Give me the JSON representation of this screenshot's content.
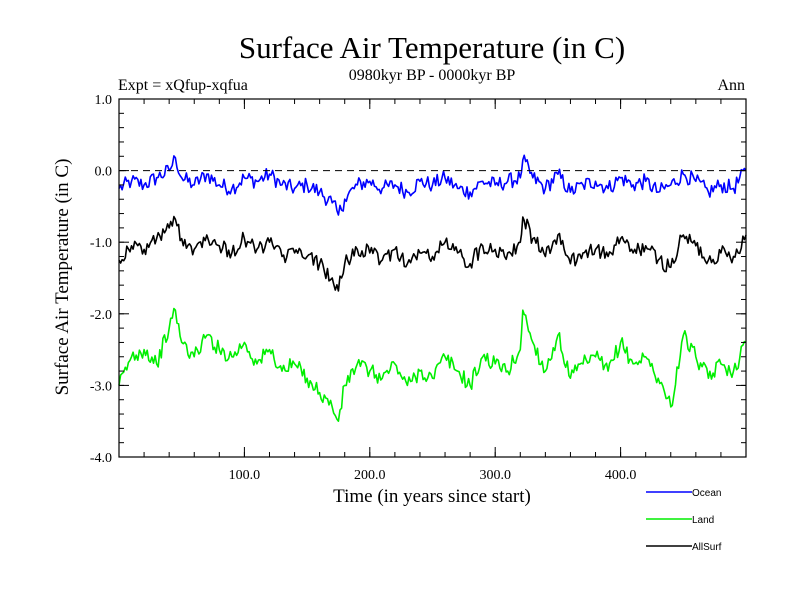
{
  "chart_data": {
    "type": "line",
    "title": "Surface Air Temperature (in C)",
    "subtitle": "0980kyr BP - 0000kyr BP",
    "expt_label": "Expt = xQfup-xqfua",
    "period_label": "Ann",
    "xlabel": "Time (in years since start)",
    "ylabel": "Surface Air Temperature (in C)",
    "xlim": [
      0,
      500
    ],
    "ylim": [
      -4.0,
      1.0
    ],
    "x_ticks": [
      {
        "value": 100,
        "label": "100.0"
      },
      {
        "value": 200,
        "label": "200.0"
      },
      {
        "value": 300,
        "label": "300.0"
      },
      {
        "value": 400,
        "label": "400.0"
      }
    ],
    "y_ticks": [
      {
        "value": 1.0,
        "label": "1.0"
      },
      {
        "value": 0.0,
        "label": "0.0"
      },
      {
        "value": -1.0,
        "label": "-1.0"
      },
      {
        "value": -2.0,
        "label": "-2.0"
      },
      {
        "value": -3.0,
        "label": "-3.0"
      },
      {
        "value": -4.0,
        "label": "-4.0"
      }
    ],
    "reference_line": {
      "y": 0.0,
      "style": "dashed"
    },
    "series": [
      {
        "name": "Ocean",
        "color": "#0000ff",
        "x": [
          0,
          10,
          20,
          30,
          40,
          45,
          50,
          60,
          70,
          80,
          90,
          100,
          110,
          120,
          130,
          140,
          150,
          160,
          170,
          175,
          180,
          190,
          200,
          210,
          220,
          230,
          240,
          250,
          260,
          270,
          280,
          290,
          300,
          310,
          320,
          322,
          330,
          340,
          350,
          360,
          370,
          380,
          390,
          400,
          410,
          420,
          430,
          440,
          450,
          460,
          470,
          480,
          490,
          500
        ],
        "values": [
          -0.25,
          -0.15,
          -0.2,
          -0.1,
          0.0,
          0.18,
          -0.1,
          -0.2,
          -0.05,
          -0.2,
          -0.25,
          -0.1,
          -0.15,
          -0.05,
          -0.2,
          -0.25,
          -0.2,
          -0.3,
          -0.45,
          -0.62,
          -0.4,
          -0.2,
          -0.15,
          -0.25,
          -0.2,
          -0.3,
          -0.15,
          -0.2,
          -0.1,
          -0.25,
          -0.3,
          -0.15,
          -0.2,
          -0.15,
          -0.1,
          0.15,
          -0.1,
          -0.25,
          -0.05,
          -0.3,
          -0.2,
          -0.15,
          -0.25,
          -0.1,
          -0.2,
          -0.15,
          -0.3,
          -0.2,
          -0.05,
          -0.15,
          -0.3,
          -0.2,
          -0.25,
          0.0
        ]
      },
      {
        "name": "Land",
        "color": "#00ee00",
        "x": [
          0,
          10,
          20,
          30,
          40,
          45,
          50,
          60,
          70,
          80,
          90,
          100,
          110,
          120,
          130,
          140,
          150,
          160,
          170,
          175,
          180,
          190,
          200,
          210,
          220,
          230,
          240,
          250,
          260,
          270,
          280,
          290,
          300,
          310,
          320,
          322,
          330,
          340,
          350,
          360,
          370,
          380,
          390,
          400,
          410,
          420,
          430,
          440,
          450,
          460,
          470,
          480,
          490,
          500
        ],
        "values": [
          -3.0,
          -2.6,
          -2.5,
          -2.7,
          -2.2,
          -1.95,
          -2.4,
          -2.6,
          -2.3,
          -2.5,
          -2.6,
          -2.4,
          -2.7,
          -2.5,
          -2.8,
          -2.7,
          -2.9,
          -3.1,
          -3.3,
          -3.5,
          -3.0,
          -2.7,
          -2.8,
          -2.9,
          -2.7,
          -3.0,
          -2.8,
          -2.9,
          -2.6,
          -2.8,
          -3.0,
          -2.6,
          -2.7,
          -2.8,
          -2.5,
          -1.95,
          -2.4,
          -2.8,
          -2.3,
          -2.9,
          -2.7,
          -2.6,
          -2.8,
          -2.4,
          -2.7,
          -2.6,
          -2.9,
          -3.3,
          -2.3,
          -2.6,
          -2.9,
          -2.7,
          -2.8,
          -2.4
        ]
      },
      {
        "name": "AllSurf",
        "color": "#000000",
        "x": [
          0,
          10,
          20,
          30,
          40,
          45,
          50,
          60,
          70,
          80,
          90,
          100,
          110,
          120,
          130,
          140,
          150,
          160,
          170,
          175,
          180,
          190,
          200,
          210,
          220,
          230,
          240,
          250,
          260,
          270,
          280,
          290,
          300,
          310,
          320,
          322,
          330,
          340,
          350,
          360,
          370,
          380,
          390,
          400,
          410,
          420,
          430,
          440,
          450,
          460,
          470,
          480,
          490,
          500
        ],
        "values": [
          -1.25,
          -1.05,
          -1.1,
          -0.95,
          -0.8,
          -0.68,
          -0.95,
          -1.1,
          -0.9,
          -1.05,
          -1.15,
          -0.95,
          -1.1,
          -1.0,
          -1.2,
          -1.15,
          -1.2,
          -1.3,
          -1.5,
          -1.68,
          -1.3,
          -1.1,
          -1.15,
          -1.25,
          -1.1,
          -1.3,
          -1.15,
          -1.2,
          -1.0,
          -1.15,
          -1.3,
          -1.05,
          -1.1,
          -1.15,
          -1.0,
          -0.65,
          -0.95,
          -1.2,
          -0.9,
          -1.3,
          -1.15,
          -1.1,
          -1.2,
          -0.95,
          -1.15,
          -1.05,
          -1.25,
          -1.35,
          -0.9,
          -1.05,
          -1.25,
          -1.15,
          -1.2,
          -0.9
        ]
      }
    ],
    "legend": {
      "position": "bottom-right",
      "entries": [
        "Ocean",
        "Land",
        "AllSurf"
      ]
    }
  }
}
